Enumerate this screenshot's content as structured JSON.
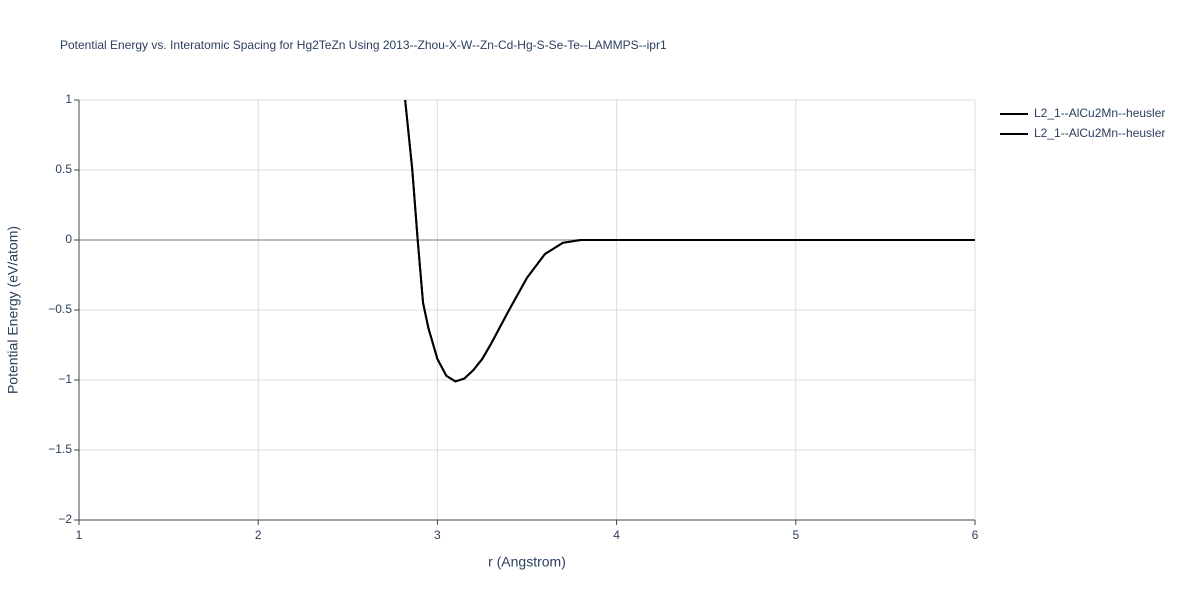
{
  "chart_data": {
    "type": "line",
    "title": "Potential Energy vs. Interatomic Spacing for Hg2TeZn Using 2013--Zhou-X-W--Zn-Cd-Hg-S-Se-Te--LAMMPS--ipr1",
    "x_label": "r (Angstrom)",
    "y_label": "Potential Energy (eV/atom)",
    "xlim": [
      1,
      6
    ],
    "ylim": [
      -2,
      1
    ],
    "xticks": [
      1,
      2,
      3,
      4,
      5,
      6
    ],
    "yticks": [
      {
        "value": -2,
        "label": "−2"
      },
      {
        "value": -1.5,
        "label": "−1.5"
      },
      {
        "value": -1,
        "label": "−1"
      },
      {
        "value": -0.5,
        "label": "−0.5"
      },
      0,
      0.5,
      1
    ],
    "grid": true,
    "legend": "top-right",
    "x": [
      2.82,
      2.86,
      2.89,
      2.92,
      2.95,
      3.0,
      3.05,
      3.1,
      3.15,
      3.2,
      3.25,
      3.3,
      3.4,
      3.5,
      3.6,
      3.7,
      3.8,
      4,
      5,
      6
    ],
    "series": [
      {
        "name": "L2_1--AlCu2Mn--heusler",
        "color": "#000000",
        "values": [
          1.0,
          0.5,
          0,
          -0.45,
          -0.63,
          -0.85,
          -0.97,
          -1.01,
          -0.99,
          -0.93,
          -0.85,
          -0.74,
          -0.5,
          -0.27,
          -0.1,
          -0.02,
          0,
          0,
          0,
          0
        ]
      },
      {
        "name": "L2_1--AlCu2Mn--heusler",
        "color": "#000000",
        "values": [
          1.0,
          0.5,
          0,
          -0.45,
          -0.63,
          -0.85,
          -0.97,
          -1.01,
          -0.99,
          -0.93,
          -0.85,
          -0.74,
          -0.5,
          -0.27,
          -0.1,
          -0.02,
          0,
          0,
          0,
          0
        ]
      }
    ]
  }
}
